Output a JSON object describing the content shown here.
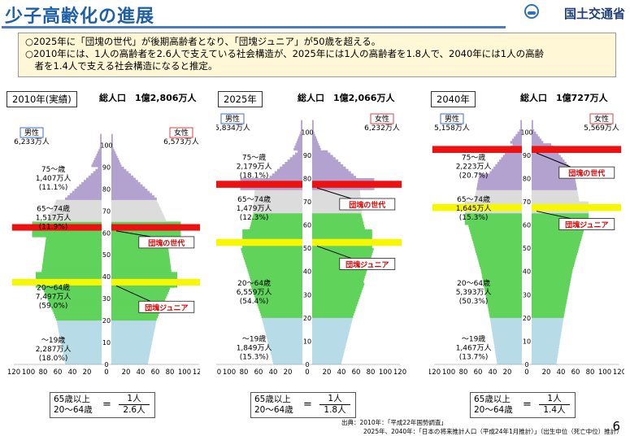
{
  "header": {
    "title": "少子高齢化の進展",
    "org": "国土交通省"
  },
  "summary": {
    "line1": "○2025年に「団塊の世代」が後期高齢者となり、「団塊ジュニア」が50歳を超える。",
    "line2": "○2010年には、1人の高齢者を2.6人で支えている社会構造が、2025年には1人の高齢者を1.8人で、2040年には1人の高齢",
    "line3": "　者を1.4人で支える社会構造になると推定。"
  },
  "colors": {
    "age75": "#b3a2cf",
    "age65": "#dcdcdc",
    "age20": "#5fd35a",
    "age0": "#b7dce8",
    "dankai": "#ee1111",
    "junior": "#f7f700",
    "callout": "#dd0000"
  },
  "chart_data": [
    {
      "type": "bar",
      "subtype": "population-pyramid",
      "year_label": "2010年(実績)",
      "total_label": "総人口　1億2,806万人",
      "male_label": "男性",
      "male_total": "6,233万人",
      "female_label": "女性",
      "female_total": "6,573万人",
      "groups": [
        {
          "key": "75+",
          "label": "75～歳",
          "value": "1,407万人",
          "share": "(11.1%)"
        },
        {
          "key": "65-74",
          "label": "65～74歳",
          "value": "1,517万人",
          "share": "(11.9%)"
        },
        {
          "key": "20-64",
          "label": "20～64歳",
          "value": "7,497万人",
          "share": "(59.0%)"
        },
        {
          "key": "0-19",
          "label": "～19歳",
          "value": "2,287万人",
          "share": "(18.0%)"
        }
      ],
      "y_ticks": [
        "0",
        "10",
        "20",
        "30",
        "40",
        "50",
        "60",
        "70",
        "80",
        "90",
        "100"
      ],
      "x_ticks": [
        "120",
        "100",
        "80",
        "60",
        "40",
        "20",
        "0",
        "20",
        "40",
        "60",
        "80",
        "100",
        "120"
      ],
      "dankai_age": 62,
      "junior_age": 37,
      "callouts": [
        "団塊の世代",
        "団塊ジュニア"
      ],
      "ratio": {
        "top": "65歳以上",
        "bottom": "20～64歳",
        "eq": "=",
        "num": "1人",
        "den": "2.6人"
      }
    },
    {
      "type": "bar",
      "subtype": "population-pyramid",
      "year_label": "2025年",
      "total_label": "総人口　1億2,066万人",
      "male_label": "男性",
      "male_total": "5,834万人",
      "female_label": "女性",
      "female_total": "6,232万人",
      "groups": [
        {
          "key": "75+",
          "label": "75～歳",
          "value": "2,179万人",
          "share": "(18.1%)"
        },
        {
          "key": "65-74",
          "label": "65～74歳",
          "value": "1,479万人",
          "share": "(12.3%)"
        },
        {
          "key": "20-64",
          "label": "20～64歳",
          "value": "6,559万人",
          "share": "(54.4%)"
        },
        {
          "key": "0-19",
          "label": "～19歳",
          "value": "1,849万人",
          "share": "(15.3%)"
        }
      ],
      "y_ticks": [
        "0",
        "10",
        "20",
        "30",
        "40",
        "50",
        "60",
        "70",
        "80",
        "90",
        "100"
      ],
      "x_ticks": [
        "120",
        "100",
        "80",
        "60",
        "40",
        "20",
        "0",
        "20",
        "40",
        "60",
        "80",
        "100",
        "120"
      ],
      "dankai_age": 77,
      "junior_age": 52,
      "callouts": [
        "団塊の世代",
        "団塊ジュニア"
      ],
      "ratio": {
        "top": "65歳以上",
        "bottom": "20～64歳",
        "eq": "=",
        "num": "1人",
        "den": "1.8人"
      }
    },
    {
      "type": "bar",
      "subtype": "population-pyramid",
      "year_label": "2040年",
      "total_label": "総人口　1億727万人",
      "male_label": "男性",
      "male_total": "5,158万人",
      "female_label": "女性",
      "female_total": "5,569万人",
      "groups": [
        {
          "key": "75+",
          "label": "75～歳",
          "value": "2,223万人",
          "share": "(20.7%)"
        },
        {
          "key": "65-74",
          "label": "65～74歳",
          "value": "1,645万人",
          "share": "(15.3%)"
        },
        {
          "key": "20-64",
          "label": "20～64歳",
          "value": "5,393万人",
          "share": "(50.3%)"
        },
        {
          "key": "0-19",
          "label": "～19歳",
          "value": "1,467万人",
          "share": "(13.7%)"
        }
      ],
      "y_ticks": [
        "0",
        "10",
        "20",
        "30",
        "40",
        "50",
        "60",
        "70",
        "80",
        "90",
        "100"
      ],
      "x_ticks": [
        "120",
        "100",
        "80",
        "60",
        "40",
        "20",
        "0",
        "20",
        "40",
        "60",
        "80",
        "100",
        "120"
      ],
      "dankai_age": 92,
      "junior_age": 67,
      "callouts": [
        "団塊の世代",
        "団塊ジュニア"
      ],
      "ratio": {
        "top": "65歳以上",
        "bottom": "20～64歳",
        "eq": "=",
        "num": "1人",
        "den": "1.4人"
      }
    }
  ],
  "footer": {
    "source1": "出典：2010年：「平成22年国勢調査」",
    "source2": "2025年、2040年：「日本の将来推計人口（平成24年1月推計）」（出生中位（死亡中位）推計）",
    "page": "6"
  }
}
